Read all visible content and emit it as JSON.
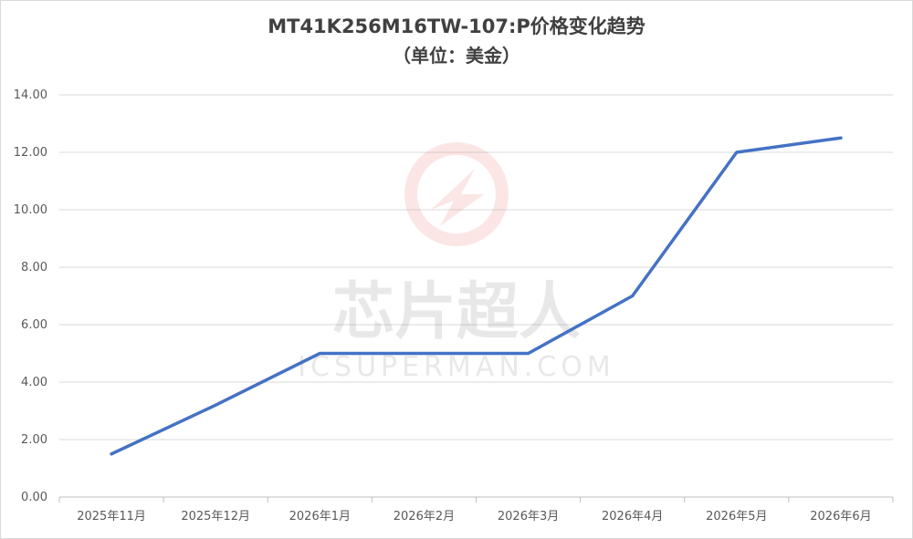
{
  "chart_data": {
    "type": "line",
    "title": "MT41K256M16TW-107:P价格变化趋势",
    "subtitle": "（单位：美金）",
    "categories": [
      "2025年11月",
      "2025年12月",
      "2026年1月",
      "2026年2月",
      "2026年3月",
      "2026年4月",
      "2026年5月",
      "2026年6月"
    ],
    "series": [
      {
        "values": [
          1.5,
          3.2,
          5.0,
          5.0,
          5.0,
          7.0,
          12.0,
          12.5
        ],
        "color": "#4472C4"
      }
    ],
    "ylim": [
      0,
      14
    ],
    "yticks": [
      "0.00",
      "2.00",
      "4.00",
      "6.00",
      "8.00",
      "10.00",
      "12.00",
      "14.00"
    ],
    "grid": true,
    "legend": "none"
  },
  "watermark": {
    "text": "芯片超人",
    "url": "ICSUPERMAN.COM"
  }
}
